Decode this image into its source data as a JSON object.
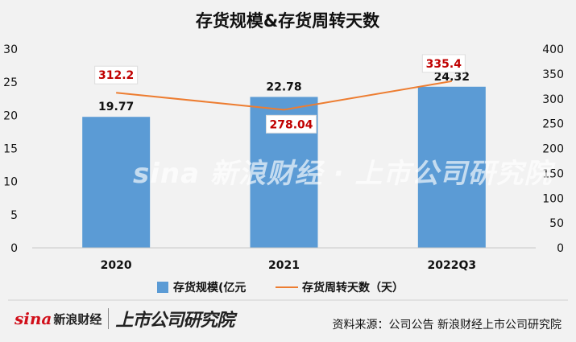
{
  "chart_data": {
    "type": "bar",
    "title": "存货规模&存货周转天数",
    "categories": [
      "2020",
      "2021",
      "2022Q3"
    ],
    "series": [
      {
        "name": "存货规模(亿元",
        "type": "bar",
        "axis": "left",
        "color": "#5b9bd5",
        "values": [
          19.77,
          22.78,
          24.32
        ]
      },
      {
        "name": "存货周转天数（天）",
        "type": "line",
        "axis": "right",
        "color": "#ed7d31",
        "values": [
          312.2,
          278.04,
          335.4
        ]
      }
    ],
    "y_left": {
      "min": 0,
      "max": 30,
      "ticks": [
        0,
        5,
        10,
        15,
        20,
        25,
        30
      ]
    },
    "y_right": {
      "min": 0,
      "max": 400,
      "ticks": [
        0,
        50,
        100,
        150,
        200,
        250,
        300,
        350,
        400
      ]
    },
    "grid": false,
    "legend": "bottom"
  },
  "watermark": "sina 新浪财经 · 上市公司研究院",
  "footer": {
    "logo_text": "sina",
    "logo_cn": "新浪财经",
    "institute": "上市公司研究院",
    "source": "资料来源：公司公告 新浪财经上市公司研究院"
  }
}
